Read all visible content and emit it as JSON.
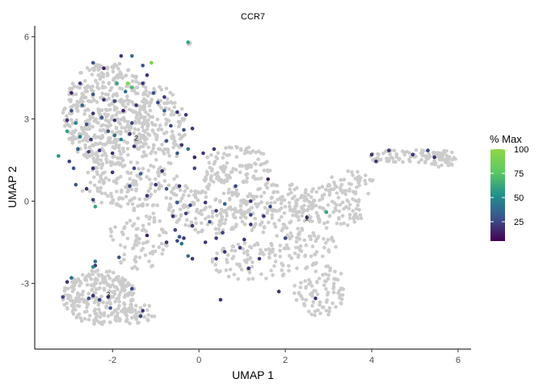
{
  "chart_data": {
    "type": "scatter",
    "title": "CCR7",
    "xlabel": "UMAP 1",
    "ylabel": "UMAP 2",
    "xlim": [
      -3.8,
      6.3
    ],
    "ylim": [
      -5.4,
      6.4
    ],
    "xticks": [
      -2,
      0,
      2,
      4,
      6
    ],
    "xtick_labels": [
      "-2",
      "0",
      "2",
      "4",
      "6"
    ],
    "yticks": [
      -3,
      0,
      3,
      6
    ],
    "ytick_labels": [
      "-3",
      "0",
      "3",
      "6"
    ],
    "grid": false,
    "background_color": "#cccccc",
    "legend": {
      "title": "% Max",
      "placement": "right",
      "range": [
        5,
        100
      ],
      "ticks": [
        25,
        50,
        75,
        100
      ],
      "tick_labels": [
        "25",
        "50",
        "75",
        "100"
      ],
      "colors": [
        "#440154",
        "#3b528b",
        "#21908c",
        "#5dc863",
        "#8fd744"
      ]
    },
    "cluster_labels": [
      {
        "text": "2",
        "x": -1.5,
        "y": 2.2
      },
      {
        "text": "1",
        "x": 2.45,
        "y": -0.7
      },
      {
        "text": "3",
        "x": -2.15,
        "y": -3.5
      }
    ],
    "expressing_points": [
      [
        -0.25,
        5.8,
        60
      ],
      [
        -1.1,
        5.05,
        90
      ],
      [
        -1.55,
        5.3,
        40
      ],
      [
        -1.8,
        5.3,
        20
      ],
      [
        -1.3,
        4.95,
        30
      ],
      [
        -1.9,
        4.3,
        60
      ],
      [
        -1.65,
        4.3,
        95
      ],
      [
        -1.55,
        4.15,
        70
      ],
      [
        -1.2,
        4.6,
        20
      ],
      [
        -1.3,
        4.3,
        20
      ],
      [
        -2.45,
        5.05,
        30
      ],
      [
        -2.2,
        4.85,
        15
      ],
      [
        -1.7,
        4.0,
        40
      ],
      [
        -1.05,
        3.95,
        30
      ],
      [
        -0.8,
        3.8,
        20
      ],
      [
        -2.75,
        4.3,
        20
      ],
      [
        -2.95,
        3.95,
        15
      ],
      [
        -2.45,
        3.9,
        30
      ],
      [
        -2.2,
        3.7,
        20
      ],
      [
        -1.95,
        3.65,
        25
      ],
      [
        -2.7,
        3.5,
        40
      ],
      [
        -2.95,
        3.3,
        30
      ],
      [
        -2.45,
        3.2,
        20
      ],
      [
        -1.75,
        3.3,
        15
      ],
      [
        -1.45,
        3.5,
        20
      ],
      [
        -3.05,
        2.95,
        20
      ],
      [
        -2.85,
        2.85,
        50
      ],
      [
        -2.6,
        2.8,
        30
      ],
      [
        -2.25,
        3.05,
        30
      ],
      [
        -1.95,
        2.95,
        20
      ],
      [
        -1.55,
        2.85,
        25
      ],
      [
        -0.8,
        3.3,
        35
      ],
      [
        -0.5,
        3.25,
        20
      ],
      [
        -0.3,
        3.15,
        20
      ],
      [
        -3.05,
        2.55,
        60
      ],
      [
        -2.75,
        2.35,
        45
      ],
      [
        -2.5,
        2.25,
        20
      ],
      [
        -2.1,
        2.55,
        30
      ],
      [
        -1.95,
        2.4,
        40
      ],
      [
        -1.8,
        2.25,
        50
      ],
      [
        -1.6,
        2.45,
        20
      ],
      [
        -0.65,
        2.75,
        25
      ],
      [
        -0.35,
        2.6,
        30
      ],
      [
        -0.15,
        2.65,
        20
      ],
      [
        -3.25,
        1.65,
        55
      ],
      [
        -3.0,
        1.45,
        25
      ],
      [
        -2.8,
        1.9,
        35
      ],
      [
        -2.55,
        1.8,
        25
      ],
      [
        -2.3,
        1.85,
        20
      ],
      [
        -2.0,
        1.75,
        20
      ],
      [
        -0.75,
        2.2,
        30
      ],
      [
        -0.4,
        2.05,
        20
      ],
      [
        -0.25,
        1.9,
        40
      ],
      [
        -0.5,
        1.75,
        30
      ],
      [
        -0.1,
        1.6,
        15
      ],
      [
        0.1,
        1.75,
        20
      ],
      [
        0.35,
        1.9,
        20
      ],
      [
        -2.9,
        1.2,
        30
      ],
      [
        -2.45,
        1.2,
        20
      ],
      [
        -1.5,
        1.2,
        25
      ],
      [
        -1.35,
        1.0,
        35
      ],
      [
        -0.85,
        1.1,
        20
      ],
      [
        -0.1,
        1.2,
        25
      ],
      [
        -2.85,
        0.6,
        30
      ],
      [
        -2.6,
        0.45,
        20
      ],
      [
        -1.6,
        0.55,
        25
      ],
      [
        -1.0,
        0.6,
        20
      ],
      [
        -0.75,
        0.45,
        30
      ],
      [
        -0.45,
        0.55,
        20
      ],
      [
        0.85,
        0.55,
        25
      ],
      [
        1.6,
        0.8,
        15
      ],
      [
        -2.45,
        0.05,
        25
      ],
      [
        -1.2,
        0.2,
        20
      ],
      [
        -0.5,
        -0.05,
        30
      ],
      [
        -0.2,
        -0.15,
        25
      ],
      [
        0.15,
        -0.05,
        20
      ],
      [
        0.6,
        -0.1,
        35
      ],
      [
        1.2,
        0.0,
        20
      ],
      [
        1.65,
        -0.2,
        25
      ],
      [
        -2.4,
        -0.2,
        60
      ],
      [
        -0.6,
        -0.55,
        20
      ],
      [
        -0.3,
        -0.45,
        25
      ],
      [
        0.4,
        -0.35,
        20
      ],
      [
        1.2,
        -0.5,
        25
      ],
      [
        1.5,
        -0.55,
        20
      ],
      [
        -0.15,
        -0.9,
        20
      ],
      [
        0.25,
        -0.75,
        30
      ],
      [
        1.2,
        -0.85,
        20
      ],
      [
        -0.55,
        -1.05,
        25
      ],
      [
        -0.45,
        -1.3,
        30
      ],
      [
        -0.35,
        -1.35,
        20
      ],
      [
        0.55,
        -1.15,
        25
      ],
      [
        -0.5,
        -1.45,
        25
      ],
      [
        -0.75,
        -1.5,
        20
      ],
      [
        -0.4,
        -1.55,
        40
      ],
      [
        0.4,
        -1.35,
        20
      ],
      [
        2.0,
        -1.35,
        25
      ],
      [
        0.15,
        -1.5,
        20
      ],
      [
        1.05,
        -1.4,
        20
      ],
      [
        -1.2,
        -1.25,
        15
      ],
      [
        0.6,
        -1.85,
        20
      ],
      [
        0.95,
        -1.7,
        25
      ],
      [
        -0.25,
        -2.0,
        40
      ],
      [
        -0.15,
        -2.1,
        20
      ],
      [
        -1.85,
        -2.05,
        30
      ],
      [
        -2.4,
        -2.35,
        20
      ],
      [
        -2.45,
        -2.4,
        50
      ],
      [
        -2.4,
        -2.2,
        40
      ],
      [
        1.4,
        -2.1,
        20
      ],
      [
        0.4,
        -2.1,
        20
      ],
      [
        1.15,
        -2.45,
        20
      ],
      [
        -2.95,
        -2.8,
        40
      ],
      [
        -3.05,
        -2.95,
        20
      ],
      [
        -3.15,
        -3.5,
        25
      ],
      [
        -2.45,
        -3.45,
        20
      ],
      [
        -2.55,
        -3.55,
        30
      ],
      [
        -2.3,
        -3.6,
        25
      ],
      [
        -2.1,
        -3.5,
        20
      ],
      [
        -1.55,
        -3.2,
        25
      ],
      [
        -2.05,
        -3.9,
        30
      ],
      [
        -1.35,
        -4.2,
        25
      ],
      [
        -1.3,
        -4.0,
        20
      ],
      [
        0.5,
        -3.6,
        20
      ],
      [
        1.85,
        -3.3,
        20
      ],
      [
        2.7,
        -3.55,
        20
      ],
      [
        2.5,
        -0.6,
        20
      ],
      [
        2.95,
        -0.4,
        60
      ],
      [
        4.0,
        1.7,
        20
      ],
      [
        4.1,
        1.45,
        20
      ],
      [
        4.4,
        1.85,
        20
      ],
      [
        4.95,
        1.7,
        20
      ],
      [
        5.3,
        1.85,
        25
      ],
      [
        5.45,
        1.6,
        20
      ],
      [
        -1.5,
        2.0,
        20
      ],
      [
        -2.0,
        1.05,
        20
      ],
      [
        -0.95,
        3.6,
        25
      ]
    ]
  }
}
